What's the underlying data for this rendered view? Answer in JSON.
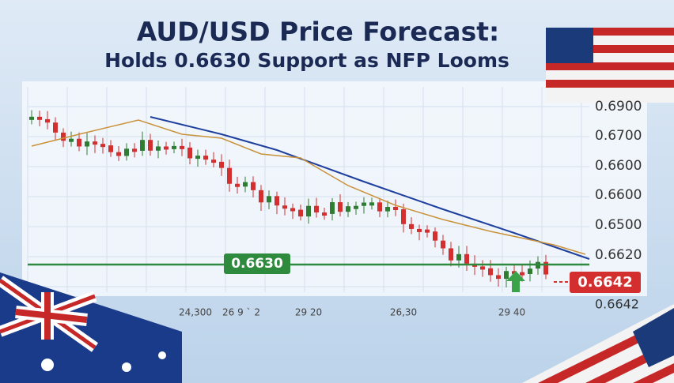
{
  "header": {
    "title": "AUD/USD Price Forecast:",
    "subtitle": "Holds 0.6630 Support as NFP Looms"
  },
  "price_labels": [
    "0.6900",
    "0.6700",
    "0.6600",
    "0.6600",
    "0.6500",
    "0.6620",
    "0.6642"
  ],
  "support_label": "0.6630",
  "current_price": "0.6642",
  "x_labels": [
    "24,300",
    "26 9 ` 2",
    "29 20",
    "26,30",
    "29 40"
  ]
}
